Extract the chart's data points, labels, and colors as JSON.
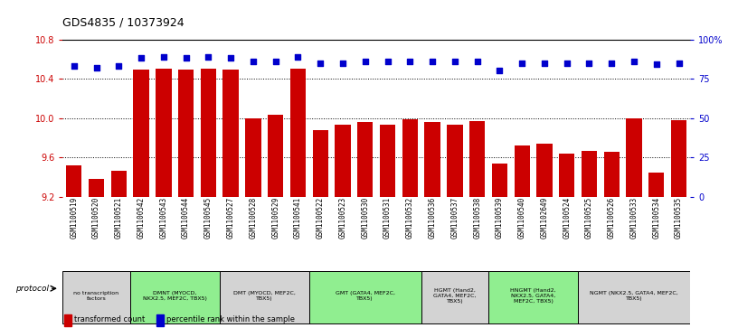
{
  "title": "GDS4835 / 10373924",
  "samples": [
    "GSM1100519",
    "GSM1100520",
    "GSM1100521",
    "GSM1100542",
    "GSM1100543",
    "GSM1100544",
    "GSM1100545",
    "GSM1100527",
    "GSM1100528",
    "GSM1100529",
    "GSM1100541",
    "GSM1100522",
    "GSM1100523",
    "GSM1100530",
    "GSM1100531",
    "GSM1100532",
    "GSM1100536",
    "GSM1100537",
    "GSM1100538",
    "GSM1100539",
    "GSM1100540",
    "GSM1102649",
    "GSM1100524",
    "GSM1100525",
    "GSM1100526",
    "GSM1100533",
    "GSM1100534",
    "GSM1100535"
  ],
  "red_values": [
    9.52,
    9.38,
    9.46,
    10.49,
    10.5,
    10.49,
    10.5,
    10.49,
    10.0,
    10.03,
    10.5,
    9.88,
    9.93,
    9.96,
    9.93,
    9.99,
    9.96,
    9.93,
    9.97,
    9.54,
    9.72,
    9.74,
    9.64,
    9.67,
    9.66,
    10.0,
    9.45,
    9.98
  ],
  "blue_values": [
    83,
    82,
    83,
    88,
    89,
    88,
    89,
    88,
    86,
    86,
    89,
    85,
    85,
    86,
    86,
    86,
    86,
    86,
    86,
    80,
    85,
    85,
    85,
    85,
    85,
    86,
    84,
    85
  ],
  "protocol_groups": [
    {
      "label": "no transcription\nfactors",
      "start": 0,
      "end": 3,
      "color": "#d3d3d3"
    },
    {
      "label": "DMNT (MYOCD,\nNKX2.5, MEF2C, TBX5)",
      "start": 3,
      "end": 7,
      "color": "#90EE90"
    },
    {
      "label": "DMT (MYOCD, MEF2C,\nTBX5)",
      "start": 7,
      "end": 11,
      "color": "#d3d3d3"
    },
    {
      "label": "GMT (GATA4, MEF2C,\nTBX5)",
      "start": 11,
      "end": 16,
      "color": "#90EE90"
    },
    {
      "label": "HGMT (Hand2,\nGATA4, MEF2C,\nTBX5)",
      "start": 16,
      "end": 19,
      "color": "#d3d3d3"
    },
    {
      "label": "HNGMT (Hand2,\nNKX2.5, GATA4,\nMEF2C, TBX5)",
      "start": 19,
      "end": 23,
      "color": "#90EE90"
    },
    {
      "label": "NGMT (NKX2.5, GATA4, MEF2C,\nTBX5)",
      "start": 23,
      "end": 28,
      "color": "#d3d3d3"
    }
  ],
  "ylim_red": [
    9.2,
    10.8
  ],
  "yticks_red": [
    9.2,
    9.6,
    10.0,
    10.4,
    10.8
  ],
  "ylim_blue_display": [
    0,
    100
  ],
  "yticks_blue": [
    0,
    25,
    50,
    75,
    100
  ],
  "bar_color": "#cc0000",
  "dot_color": "#0000cc",
  "background_color": "#ffffff"
}
